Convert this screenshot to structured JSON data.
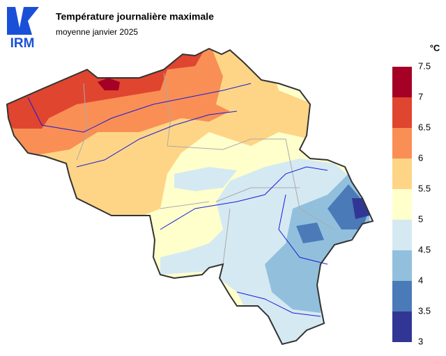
{
  "header": {
    "logo": "IRM",
    "title": "Température journalière maximale",
    "subtitle": "moyenne janvier 2025"
  },
  "legend": {
    "unit": "°C",
    "ticks": [
      3,
      3.5,
      4,
      4.5,
      5,
      5.5,
      6,
      6.5,
      7,
      7.5
    ],
    "colors": [
      "#313695",
      "#4a7ab8",
      "#92c0dc",
      "#d5e9f2",
      "#ffffcc",
      "#fed586",
      "#f98f55",
      "#e0452f",
      "#a50026"
    ]
  }
}
